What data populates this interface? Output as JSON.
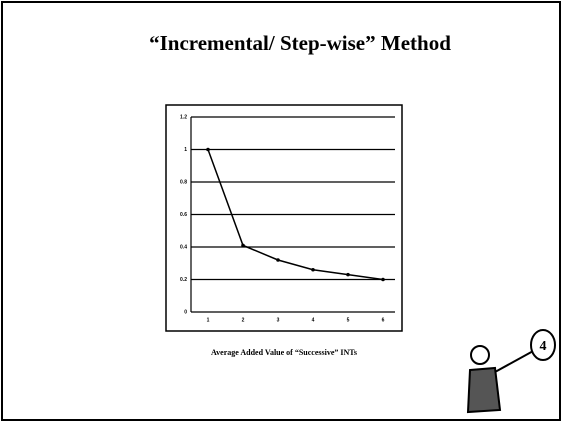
{
  "chart_data": {
    "type": "line",
    "title": "“Incremental/ Step-wise” Method",
    "x_label": "Average Added Value of “Successive” INTs",
    "categories": [
      "1",
      "2",
      "3",
      "4",
      "5",
      "6"
    ],
    "values": [
      1,
      0.41,
      0.32,
      0.26,
      0.23,
      0.2
    ],
    "color": "#000000",
    "ylim": [
      0,
      1.2
    ],
    "yticks": [
      0,
      0.2,
      0.4,
      0.6,
      0.8,
      1,
      1.2
    ],
    "grid": true
  }
}
